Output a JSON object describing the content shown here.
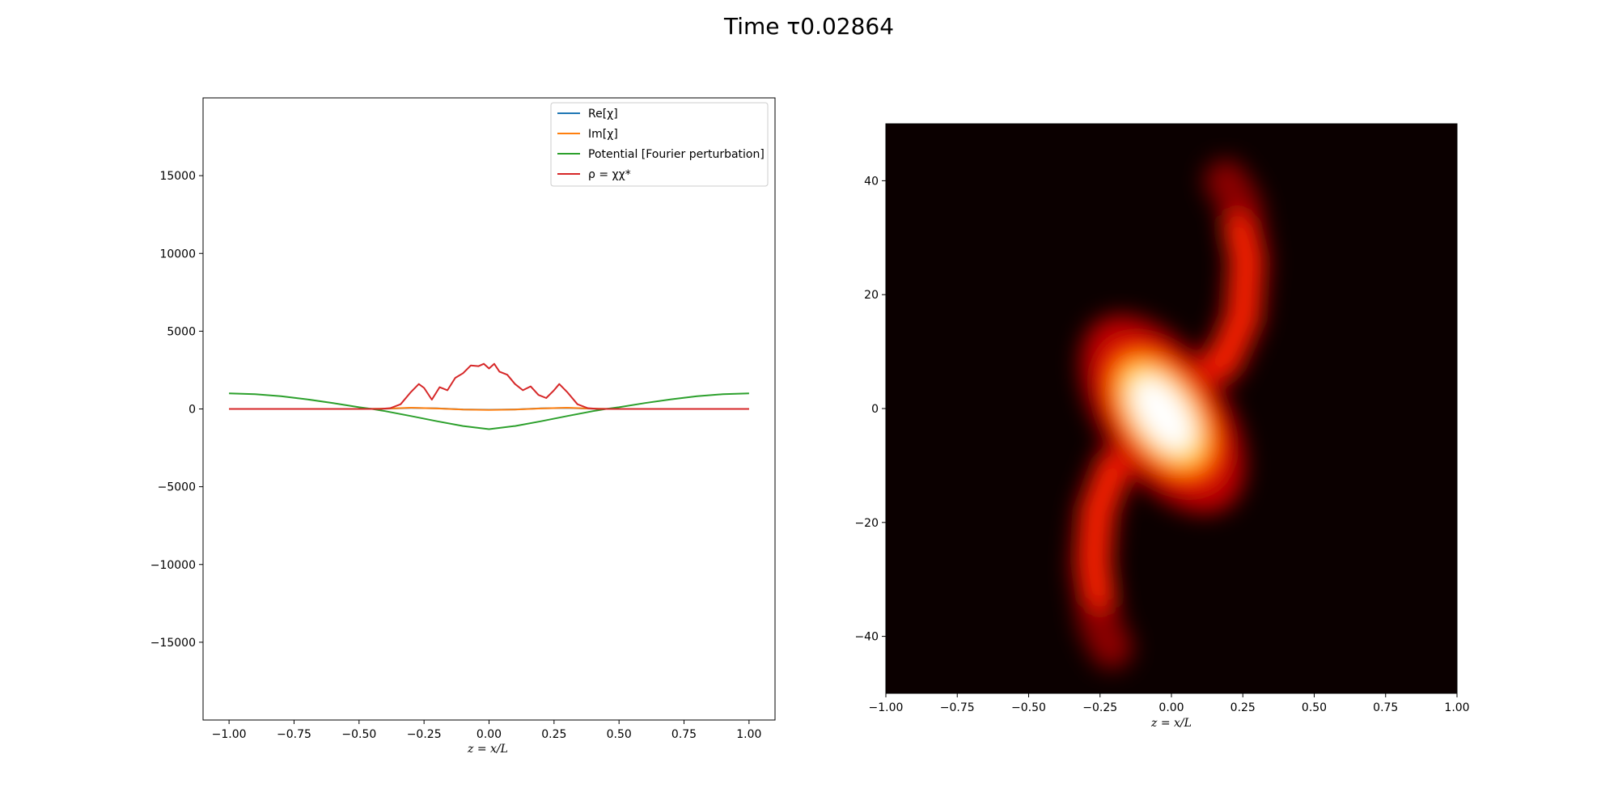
{
  "suptitle": "Time τ0.02864",
  "chart_data": [
    {
      "type": "line",
      "xlabel": "z = x/L",
      "ylabel": "",
      "xlim": [
        -1.1,
        1.1
      ],
      "ylim": [
        -20000,
        20000
      ],
      "xticks": [
        "−1.00",
        "−0.75",
        "−0.50",
        "−0.25",
        "0.00",
        "0.25",
        "0.50",
        "0.75",
        "1.00"
      ],
      "xtick_values": [
        -1,
        -0.75,
        -0.5,
        -0.25,
        0,
        0.25,
        0.5,
        0.75,
        1
      ],
      "yticks": [
        "−15000",
        "−10000",
        "−5000",
        "0",
        "5000",
        "10000",
        "15000"
      ],
      "ytick_values": [
        -15000,
        -10000,
        -5000,
        0,
        5000,
        10000,
        15000
      ],
      "legend_position": "upper right",
      "grid": false,
      "series": [
        {
          "name": "Re[χ]",
          "color": "#1f77b4",
          "x": [
            -1,
            -0.5,
            -0.4,
            -0.3,
            -0.2,
            -0.1,
            0,
            0.1,
            0.2,
            0.3,
            0.4,
            0.5,
            1
          ],
          "y": [
            0,
            0,
            10,
            60,
            40,
            -30,
            -50,
            -30,
            40,
            60,
            10,
            0,
            0
          ]
        },
        {
          "name": "Im[χ]",
          "color": "#ff7f0e",
          "x": [
            -1,
            -0.5,
            -0.4,
            -0.3,
            -0.2,
            -0.1,
            0,
            0.1,
            0.2,
            0.3,
            0.4,
            0.5,
            1
          ],
          "y": [
            0,
            0,
            20,
            80,
            30,
            -40,
            -60,
            -40,
            30,
            80,
            20,
            0,
            0
          ]
        },
        {
          "name": "Potential [Fourier perturbation]",
          "color": "#2ca02c",
          "x": [
            -1,
            -0.9,
            -0.8,
            -0.7,
            -0.6,
            -0.5,
            -0.45,
            -0.4,
            -0.3,
            -0.2,
            -0.1,
            0,
            0.1,
            0.2,
            0.3,
            0.4,
            0.45,
            0.5,
            0.6,
            0.7,
            0.8,
            0.9,
            1
          ],
          "y": [
            1000,
            950,
            820,
            620,
            380,
            110,
            0,
            -140,
            -460,
            -790,
            -1100,
            -1300,
            -1100,
            -790,
            -460,
            -140,
            0,
            110,
            380,
            620,
            820,
            950,
            1000
          ]
        },
        {
          "name": "ρ = χχ*",
          "color": "#d62728",
          "x": [
            -1,
            -0.42,
            -0.38,
            -0.34,
            -0.3,
            -0.27,
            -0.25,
            -0.22,
            -0.19,
            -0.16,
            -0.13,
            -0.1,
            -0.07,
            -0.04,
            -0.02,
            0,
            0.02,
            0.04,
            0.07,
            0.1,
            0.13,
            0.16,
            0.19,
            0.22,
            0.25,
            0.27,
            0.3,
            0.34,
            0.38,
            0.42,
            1
          ],
          "y": [
            0,
            0,
            50,
            300,
            1100,
            1600,
            1350,
            600,
            1400,
            1200,
            2000,
            2300,
            2800,
            2750,
            2900,
            2600,
            2900,
            2400,
            2200,
            1600,
            1200,
            1450,
            900,
            700,
            1200,
            1600,
            1100,
            300,
            50,
            0,
            0
          ]
        }
      ]
    },
    {
      "type": "heatmap",
      "xlabel": "z = x/L",
      "xlim": [
        -1,
        1
      ],
      "ylim": [
        -50,
        50
      ],
      "xticks": [
        "−1.00",
        "−0.75",
        "−0.50",
        "−0.25",
        "0.00",
        "0.25",
        "0.50",
        "0.75",
        "1.00"
      ],
      "xtick_values": [
        -1,
        -0.75,
        -0.5,
        -0.25,
        0,
        0.25,
        0.5,
        0.75,
        1
      ],
      "yticks": [
        "−40",
        "−20",
        "0",
        "20",
        "40"
      ],
      "ytick_values": [
        -40,
        -20,
        0,
        20,
        40
      ],
      "colormap": "hot",
      "background_color": "#0b0000",
      "description_blobs": [
        {
          "x": -0.03,
          "y": -1,
          "sx": 0.12,
          "sy": 9,
          "intensity": 1.0
        },
        {
          "x": 0.22,
          "y": 20,
          "sx": 0.06,
          "sy": 12,
          "intensity": 0.55
        },
        {
          "x": -0.22,
          "y": -22,
          "sx": 0.06,
          "sy": 12,
          "intensity": 0.55
        }
      ]
    }
  ]
}
